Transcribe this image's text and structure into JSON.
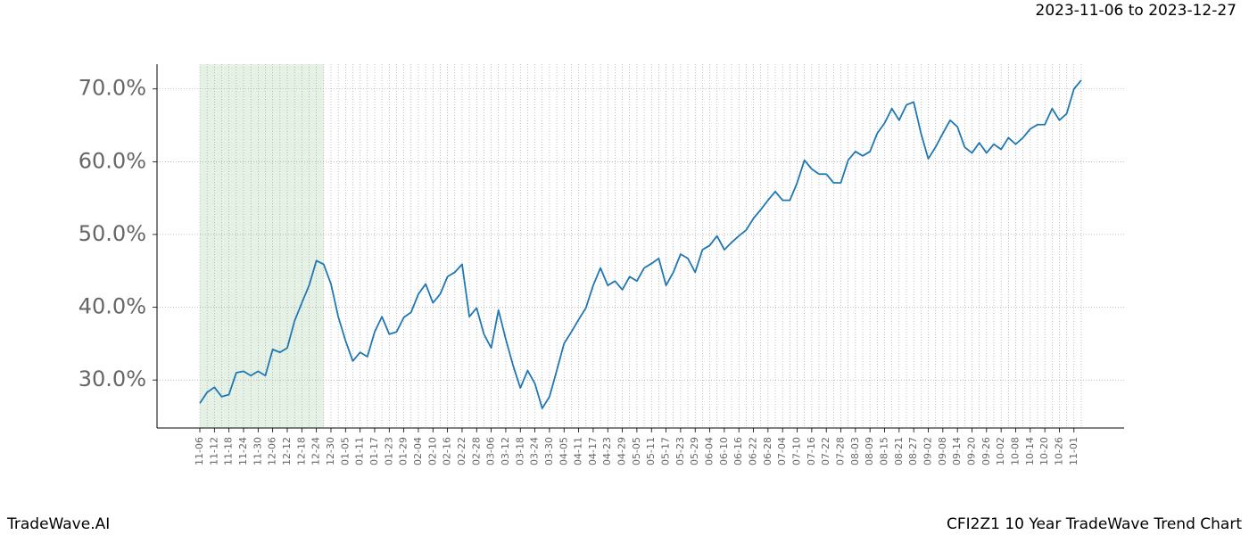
{
  "chart_data": {
    "type": "line",
    "subtitle": "2023-11-06 to 2023-12-27",
    "title": "CFI2Z1 10 Year TradeWave Trend Chart",
    "source": "TradeWave.AI",
    "categories": [
      "11-06",
      null,
      "11-12",
      null,
      "11-18",
      null,
      "11-24",
      null,
      "11-30",
      null,
      "12-06",
      null,
      "12-12",
      null,
      "12-18",
      null,
      "12-24",
      null,
      "12-30",
      null,
      "01-05",
      null,
      "01-11",
      null,
      "01-17",
      null,
      "01-23",
      null,
      "01-29",
      null,
      "02-04",
      null,
      "02-10",
      null,
      "02-16",
      null,
      "02-22",
      null,
      "02-28",
      null,
      "03-06",
      null,
      "03-12",
      null,
      "03-18",
      null,
      "03-24",
      null,
      "03-30",
      null,
      "04-05",
      null,
      "04-11",
      null,
      "04-17",
      null,
      "04-23",
      null,
      "04-29",
      null,
      "05-05",
      null,
      "05-11",
      null,
      "05-17",
      null,
      "05-23",
      null,
      "05-29",
      null,
      "06-04",
      null,
      "06-10",
      null,
      "06-16",
      null,
      "06-22",
      null,
      "06-28",
      null,
      "07-04",
      null,
      "07-10",
      null,
      "07-16",
      null,
      "07-22",
      null,
      "07-28",
      null,
      "08-03",
      null,
      "08-09",
      null,
      "08-15",
      null,
      "08-21",
      null,
      "08-27",
      null,
      "09-02",
      null,
      "09-08",
      null,
      "09-14",
      null,
      "09-20",
      null,
      "09-26",
      null,
      "10-02",
      null,
      "10-08",
      null,
      "10-14",
      null,
      "10-20",
      null,
      "10-26",
      null,
      "11-01",
      null
    ],
    "series": [
      {
        "color": "#1f77b4",
        "values": [
          26.8,
          28.3,
          29.0,
          27.7,
          28.0,
          31.0,
          31.2,
          30.6,
          31.2,
          30.6,
          34.2,
          33.8,
          34.4,
          38.1,
          40.6,
          43.0,
          46.4,
          45.9,
          43.2,
          38.7,
          35.4,
          32.6,
          33.8,
          33.2,
          36.6,
          38.7,
          36.3,
          36.6,
          38.6,
          39.3,
          41.8,
          43.2,
          40.6,
          41.8,
          44.2,
          44.8,
          45.9,
          38.7,
          39.9,
          36.3,
          34.4,
          39.6,
          35.6,
          32.0,
          28.9,
          31.3,
          29.5,
          26.1,
          27.7,
          31.3,
          35.0,
          36.6,
          38.3,
          39.9,
          43.0,
          45.4,
          43.0,
          43.6,
          42.4,
          44.2,
          43.6,
          45.4,
          46.0,
          46.7,
          43.0,
          44.8,
          47.3,
          46.7,
          44.8,
          47.9,
          48.5,
          49.8,
          47.9,
          48.9,
          49.8,
          50.6,
          52.2,
          53.4,
          54.7,
          55.9,
          54.7,
          54.7,
          57.1,
          60.2,
          59.0,
          58.3,
          58.3,
          57.1,
          57.1,
          60.2,
          61.4,
          60.8,
          61.4,
          63.9,
          65.3,
          67.3,
          65.7,
          67.8,
          68.2,
          63.9,
          60.4,
          62.0,
          63.9,
          65.7,
          64.8,
          62.0,
          61.2,
          62.6,
          61.2,
          62.4,
          61.7,
          63.3,
          62.4,
          63.3,
          64.5,
          65.1,
          65.1,
          67.3,
          65.7,
          66.6,
          70.0,
          71.2
        ]
      }
    ],
    "highlight": [
      0,
      17
    ],
    "highlight_color": "#d5e8d4",
    "ylim": [
      23.4,
      73.4
    ],
    "yticks": [
      {
        "value": 30,
        "label": "30.0%"
      },
      {
        "value": 40,
        "label": "40.0%"
      },
      {
        "value": 50,
        "label": "50.0%"
      },
      {
        "value": 60,
        "label": "60.0%"
      },
      {
        "value": 70,
        "label": "70.0%"
      }
    ],
    "grid": true
  }
}
